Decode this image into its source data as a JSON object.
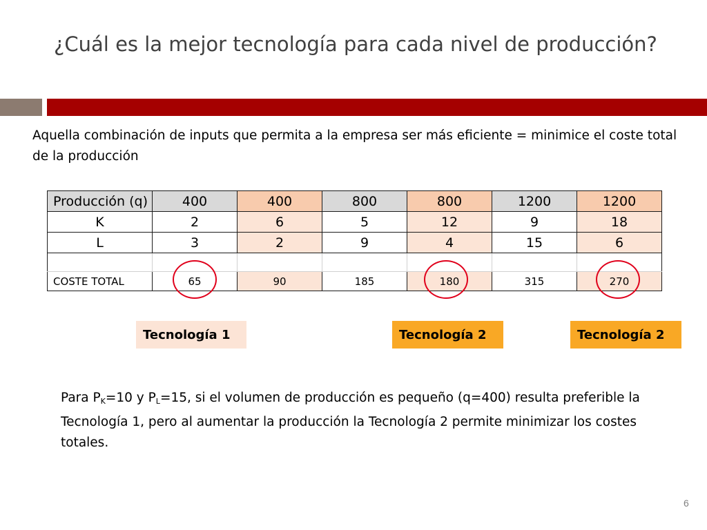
{
  "title": "¿Cuál es la mejor tecnología para cada nivel de producción?",
  "intro": "Aquella combinación de inputs que permita a la empresa ser más eficiente = minimice el coste total de la producción",
  "table": {
    "rows": [
      {
        "label": "Producción (q)",
        "values": [
          "400",
          "400",
          "800",
          "800",
          "1200",
          "1200"
        ]
      },
      {
        "label": "K",
        "values": [
          "2",
          "6",
          "5",
          "12",
          "9",
          "18"
        ]
      },
      {
        "label": "L",
        "values": [
          "3",
          "2",
          "9",
          "4",
          "15",
          "6"
        ]
      },
      {
        "label": "COSTE TOTAL",
        "values": [
          "65",
          "90",
          "185",
          "180",
          "315",
          "270"
        ]
      }
    ]
  },
  "tags": [
    {
      "label": "Tecnología 1",
      "color": "#fce4d6"
    },
    {
      "label": "Tecnología 2",
      "color": "#f9a825"
    },
    {
      "label": "Tecnología 2",
      "color": "#f9a825"
    }
  ],
  "note": {
    "p1": "Para P",
    "sub_k": "K",
    "p2": "=10 y P",
    "sub_l": "L",
    "p3": "=15, si el volumen de producción es pequeño (q=400) resulta preferible la Tecnología 1, pero al aumentar la producción la Tecnología 2 permite minimizar los costes totales."
  },
  "page_number": "6",
  "colors": {
    "accent_red": "#a50000",
    "accent_gray": "#8c7b70",
    "circle_red": "#e0001b"
  }
}
